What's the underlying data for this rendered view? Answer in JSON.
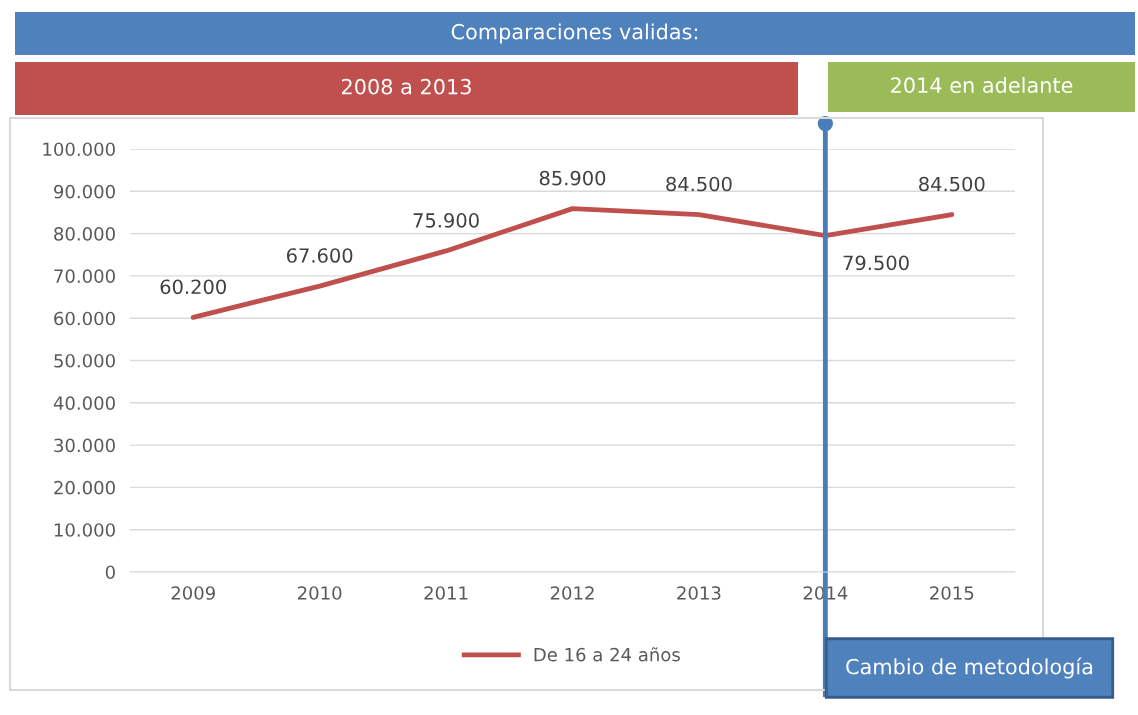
{
  "chart_data": {
    "type": "line",
    "categories": [
      "2009",
      "2010",
      "2011",
      "2012",
      "2013",
      "2014",
      "2015"
    ],
    "series": [
      {
        "name": "De 16 a 24 años",
        "color": "#c0504d",
        "values": [
          60200,
          67600,
          75900,
          85900,
          84500,
          79500,
          84500
        ],
        "value_labels": [
          "60.200",
          "67.600",
          "75.900",
          "85.900",
          "84.500",
          "79.500",
          "84.500"
        ]
      }
    ],
    "ylim": [
      0,
      100000
    ],
    "yticks": [
      {
        "value": 0,
        "label": "0"
      },
      {
        "value": 10000,
        "label": "10.000"
      },
      {
        "value": 20000,
        "label": "20.000"
      },
      {
        "value": 30000,
        "label": "30.000"
      },
      {
        "value": 40000,
        "label": "40.000"
      },
      {
        "value": 50000,
        "label": "50.000"
      },
      {
        "value": 60000,
        "label": "60.000"
      },
      {
        "value": 70000,
        "label": "70.000"
      },
      {
        "value": 80000,
        "label": "80.000"
      },
      {
        "value": 90000,
        "label": "90.000"
      },
      {
        "value": 100000,
        "label": "100.000"
      }
    ],
    "grid": "y",
    "legend": "bottom",
    "marker": "none",
    "line_style": "solid",
    "ref_lines": [
      {
        "axis": "x",
        "value": "2014",
        "label": "Cambio de metodología",
        "color": "#4a7ebb"
      }
    ],
    "annotations": [
      "Comparaciones validas:",
      "2008 a 2013",
      "2014 en adelante"
    ]
  }
}
